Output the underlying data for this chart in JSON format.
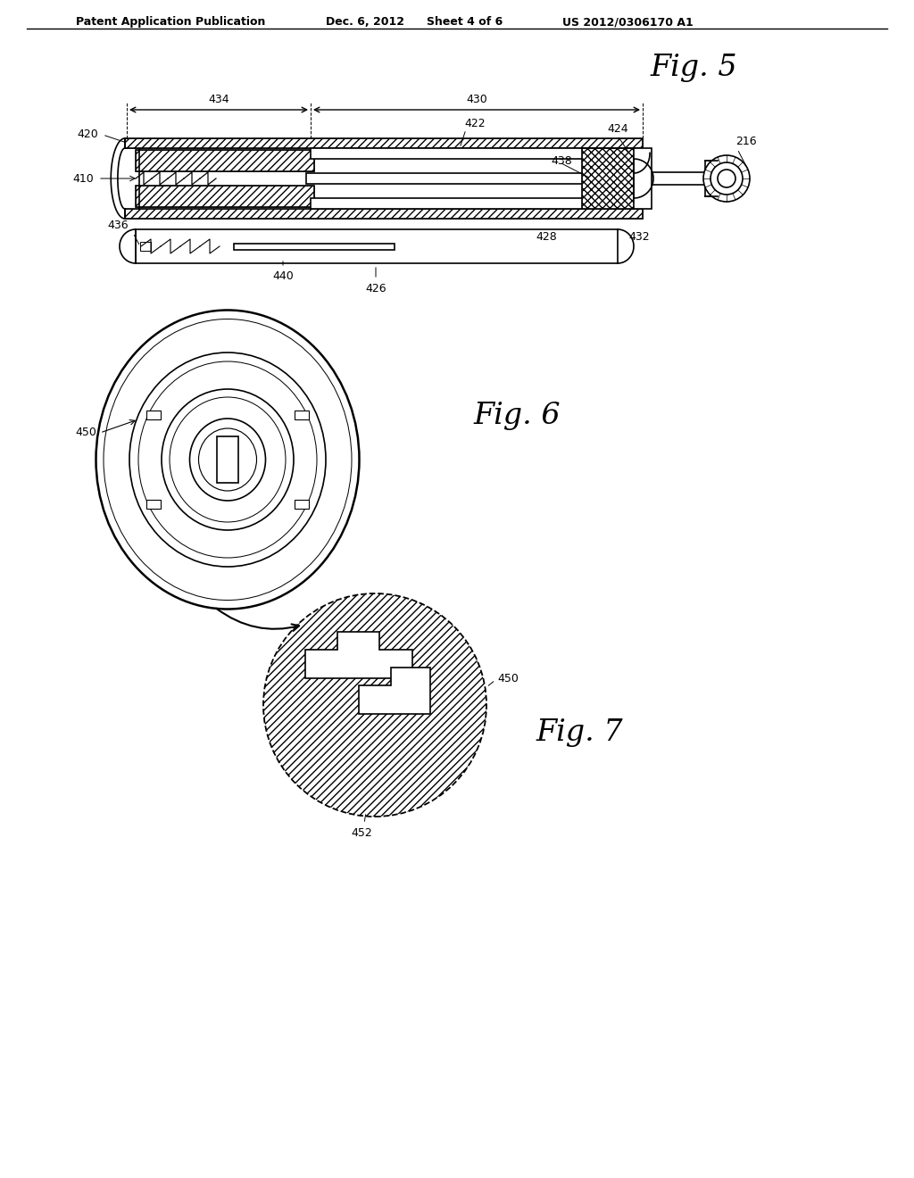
{
  "background_color": "#ffffff",
  "header_text": "Patent Application Publication",
  "header_date": "Dec. 6, 2012",
  "header_sheet": "Sheet 4 of 6",
  "header_patent": "US 2012/0306170 A1",
  "fig5_title": "Fig. 5",
  "fig6_title": "Fig. 6",
  "fig7_title": "Fig. 7",
  "line_color": "#000000"
}
